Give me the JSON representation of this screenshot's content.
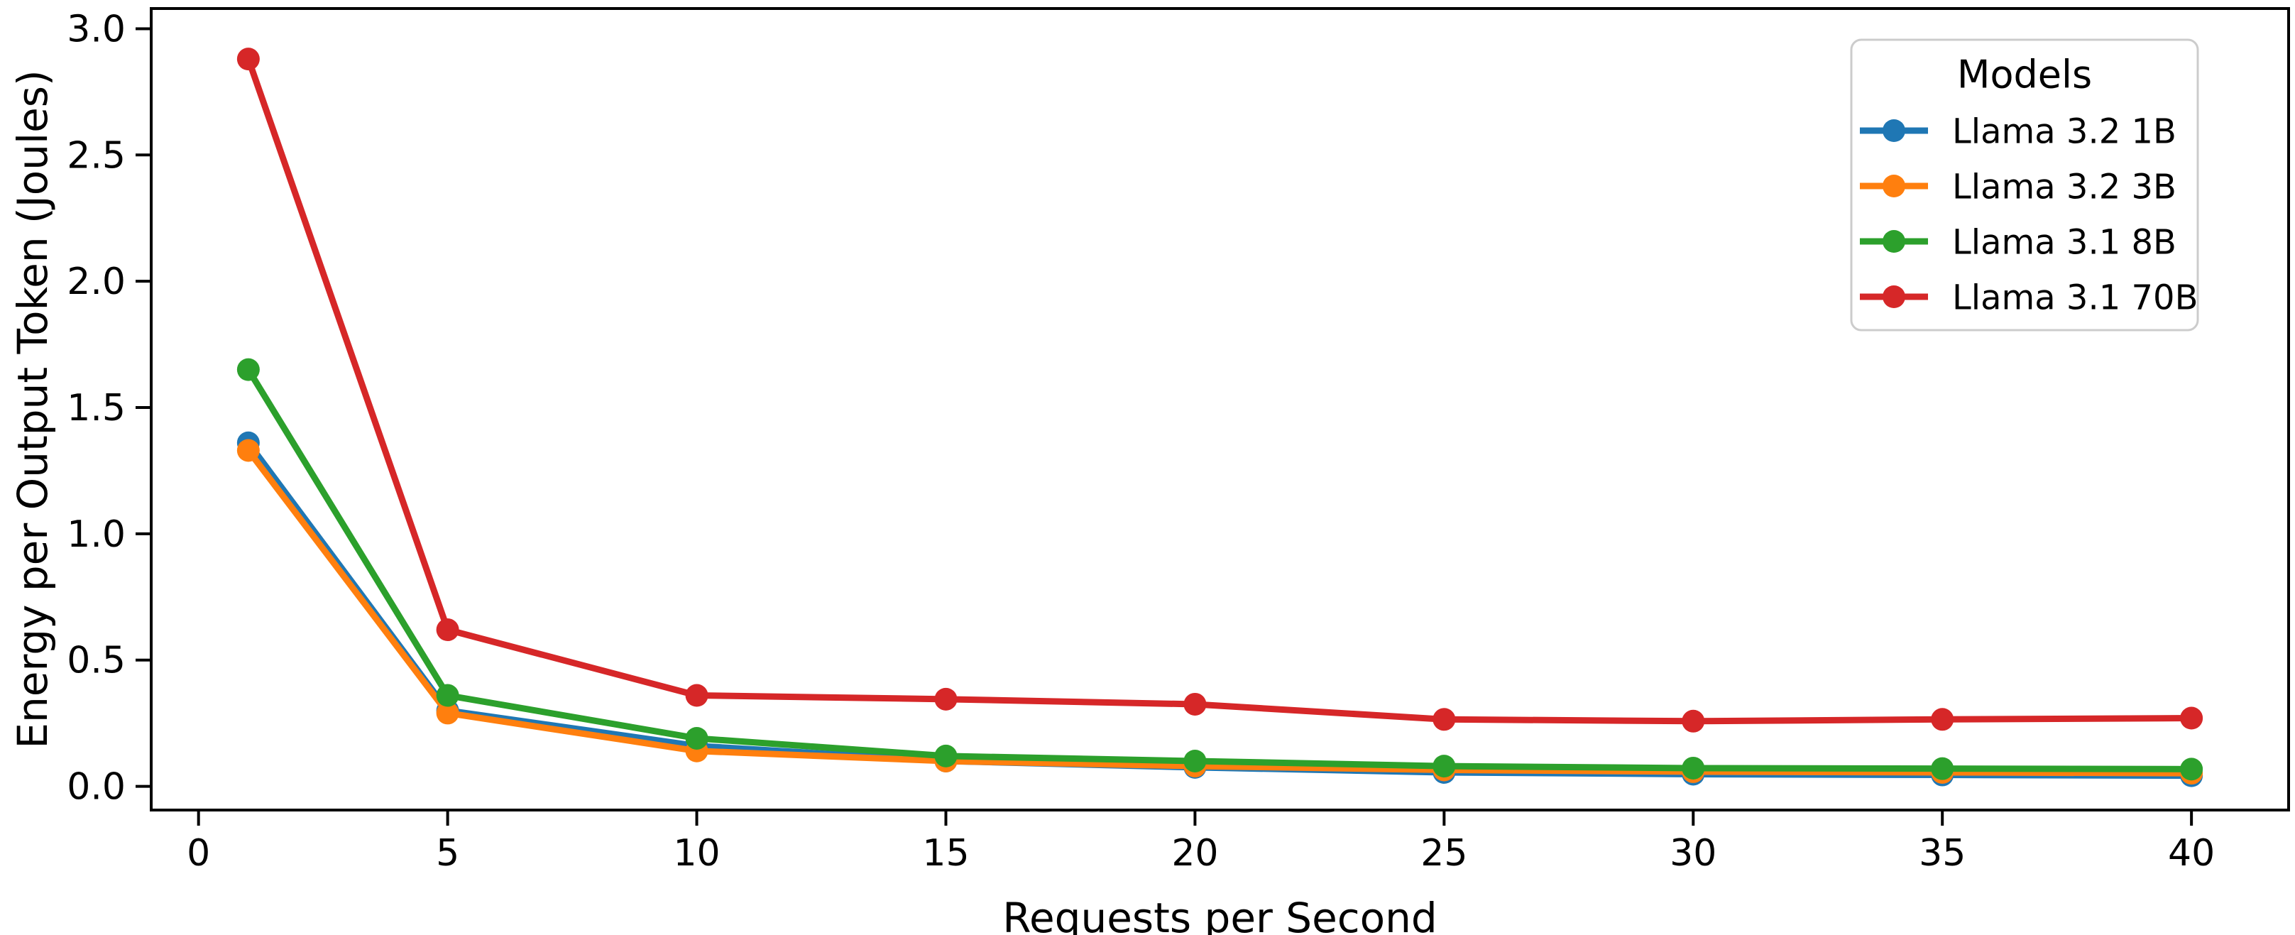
{
  "chart_data": {
    "type": "line",
    "title": "",
    "xlabel": "Requests per Second",
    "ylabel": "Energy per Output Token (Joules)",
    "x": [
      1,
      5,
      10,
      15,
      20,
      25,
      30,
      35,
      40
    ],
    "series": [
      {
        "name": "Llama 3.2 1B",
        "color": "#1f77b4",
        "values": [
          1.36,
          0.3,
          0.16,
          0.1,
          0.075,
          0.055,
          0.048,
          0.045,
          0.042
        ]
      },
      {
        "name": "Llama 3.2 3B",
        "color": "#ff7f0e",
        "values": [
          1.33,
          0.29,
          0.14,
          0.1,
          0.08,
          0.065,
          0.058,
          0.055,
          0.052
        ]
      },
      {
        "name": "Llama 3.1 8B",
        "color": "#2ca02c",
        "values": [
          1.65,
          0.36,
          0.19,
          0.12,
          0.1,
          0.08,
          0.072,
          0.07,
          0.068
        ]
      },
      {
        "name": "Llama 3.1 70B",
        "color": "#d62728",
        "values": [
          2.88,
          0.62,
          0.36,
          0.345,
          0.325,
          0.265,
          0.258,
          0.265,
          0.27
        ]
      }
    ],
    "xtick_labels": [
      "0",
      "5",
      "10",
      "15",
      "20",
      "25",
      "30",
      "35",
      "40"
    ],
    "xtick_values": [
      0,
      5,
      10,
      15,
      20,
      25,
      30,
      35,
      40
    ],
    "ytick_labels": [
      "0.0",
      "0.5",
      "1.0",
      "1.5",
      "2.0",
      "2.5",
      "3.0"
    ],
    "ytick_values": [
      0.0,
      0.5,
      1.0,
      1.5,
      2.0,
      2.5,
      3.0
    ],
    "xlim": [
      -0.95,
      41.95
    ],
    "ylim": [
      -0.094,
      3.08
    ],
    "grid": false,
    "marker": "o",
    "legend": {
      "title": "Models",
      "position": "upper right",
      "entries": [
        "Llama 3.2 1B",
        "Llama 3.2 3B",
        "Llama 3.1 8B",
        "Llama 3.1 70B"
      ]
    },
    "colors": {
      "axes": "#000000",
      "text": "#000000",
      "legend_border": "#cccccc",
      "background": "#ffffff"
    }
  }
}
